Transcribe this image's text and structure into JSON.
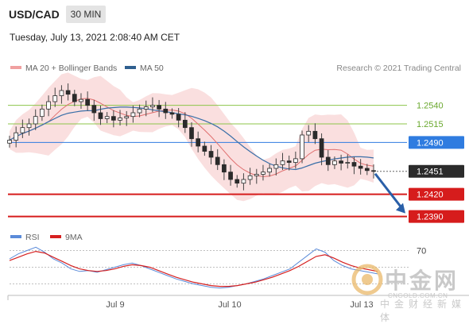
{
  "header": {
    "symbol": "USD/CAD",
    "timeframe": "30 MIN",
    "datetime": "Tuesday, July 13, 2021 2:08:40 AM CET"
  },
  "legend": {
    "ma20_bb": {
      "label": "MA 20 + Bollinger Bands",
      "color": "#f08080"
    },
    "ma50": {
      "label": "MA 50",
      "color": "#2f5f8f"
    },
    "rsi": {
      "label": "RSI",
      "color": "#5b8bd9"
    },
    "ma9": {
      "label": "9MA",
      "color": "#d62020"
    }
  },
  "research": "Research © 2021 Trading Central",
  "watermark": {
    "cn": "中金网",
    "url": "CNGOLD.COM.CN",
    "sub": "中金财经新媒体"
  },
  "chart_data": {
    "type": "candlestick",
    "symbol": "USD/CAD",
    "timeframe": "30 MIN",
    "x_labels": [
      "Jul 9",
      "Jul 10",
      "Jul 13"
    ],
    "y_range": [
      1.238,
      1.2575
    ],
    "current_price": 1.2451,
    "levels": [
      {
        "value": 1.254,
        "label": "1.2540",
        "kind": "resistance",
        "color": "#8cc54a"
      },
      {
        "value": 1.2515,
        "label": "1.2515",
        "kind": "resistance",
        "color": "#8cc54a"
      },
      {
        "value": 1.249,
        "label": "1.2490",
        "kind": "pivot",
        "color": "#2f7ce0"
      },
      {
        "value": 1.242,
        "label": "1.2420",
        "kind": "support",
        "color": "#d61c1c"
      },
      {
        "value": 1.239,
        "label": "1.2390",
        "kind": "support",
        "color": "#d61c1c"
      }
    ],
    "forecast_target": 1.239,
    "price_close": [
      1.2493,
      1.2503,
      1.251,
      1.2515,
      1.2525,
      1.2535,
      1.2545,
      1.2553,
      1.256,
      1.2555,
      1.2545,
      1.2548,
      1.254,
      1.253,
      1.2522,
      1.2525,
      1.252,
      1.2523,
      1.2525,
      1.253,
      1.2535,
      1.2538,
      1.254,
      1.2535,
      1.253,
      1.2528,
      1.252,
      1.251,
      1.2495,
      1.2485,
      1.2478,
      1.247,
      1.246,
      1.245,
      1.244,
      1.2435,
      1.244,
      1.2445,
      1.2447,
      1.245,
      1.2455,
      1.246,
      1.2465,
      1.2463,
      1.2468,
      1.25,
      1.2505,
      1.2495,
      1.247,
      1.246,
      1.2465,
      1.2462,
      1.2463,
      1.2458,
      1.2455,
      1.2452,
      1.2451
    ],
    "rsi": {
      "level": 70,
      "level_label": "70",
      "values": [
        60,
        66,
        70,
        74,
        68,
        60,
        55,
        48,
        45,
        46,
        44,
        47,
        50,
        53,
        55,
        52,
        48,
        44,
        40,
        36,
        33,
        30,
        28,
        26,
        25,
        26,
        28,
        30,
        33,
        36,
        40,
        44,
        48,
        56,
        64,
        72,
        68,
        58,
        52,
        48,
        46,
        44,
        42
      ],
      "ma9": [
        58,
        62,
        66,
        69,
        67,
        62,
        57,
        52,
        48,
        46,
        45,
        46,
        48,
        51,
        53,
        52,
        50,
        46,
        42,
        38,
        35,
        32,
        30,
        28,
        27,
        27,
        28,
        30,
        32,
        35,
        38,
        42,
        46,
        51,
        57,
        63,
        65,
        61,
        56,
        52,
        49,
        47,
        45
      ]
    }
  }
}
